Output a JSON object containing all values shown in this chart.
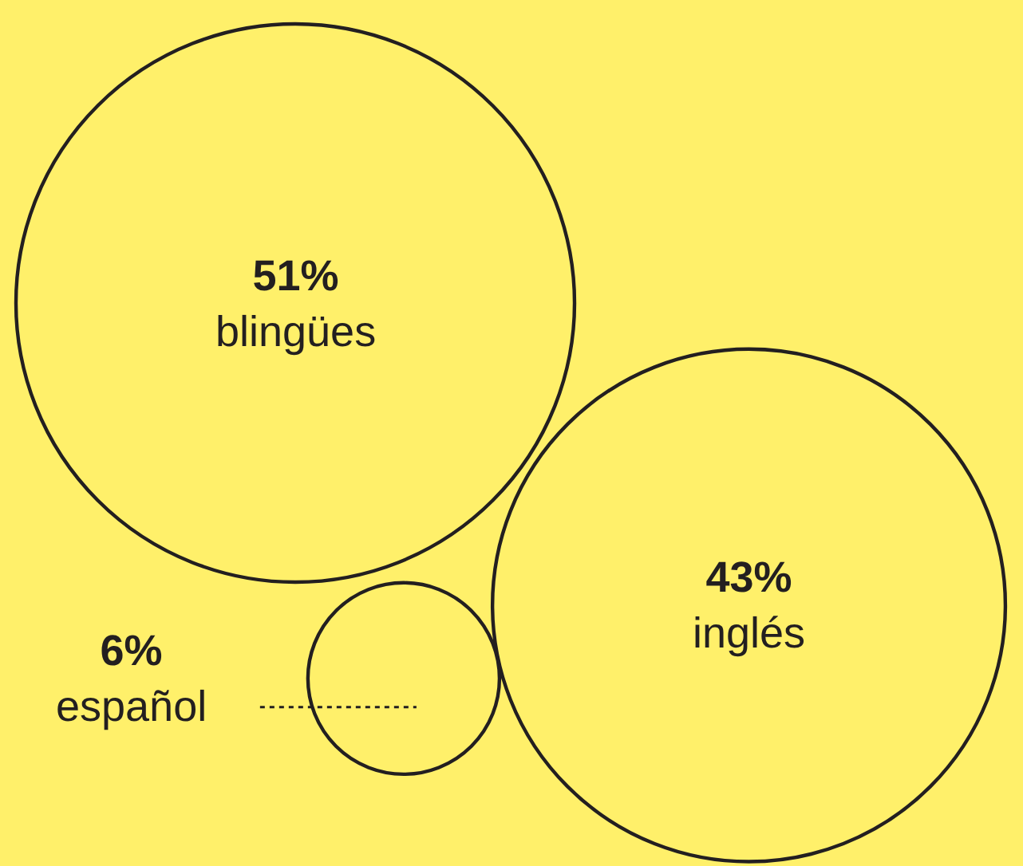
{
  "chart_data": {
    "type": "other",
    "categories": [
      "blingües",
      "inglés",
      "español"
    ],
    "values": [
      51,
      43,
      6
    ],
    "value_labels": [
      "51%",
      "43%",
      "6%"
    ],
    "color": "#fff06a"
  }
}
